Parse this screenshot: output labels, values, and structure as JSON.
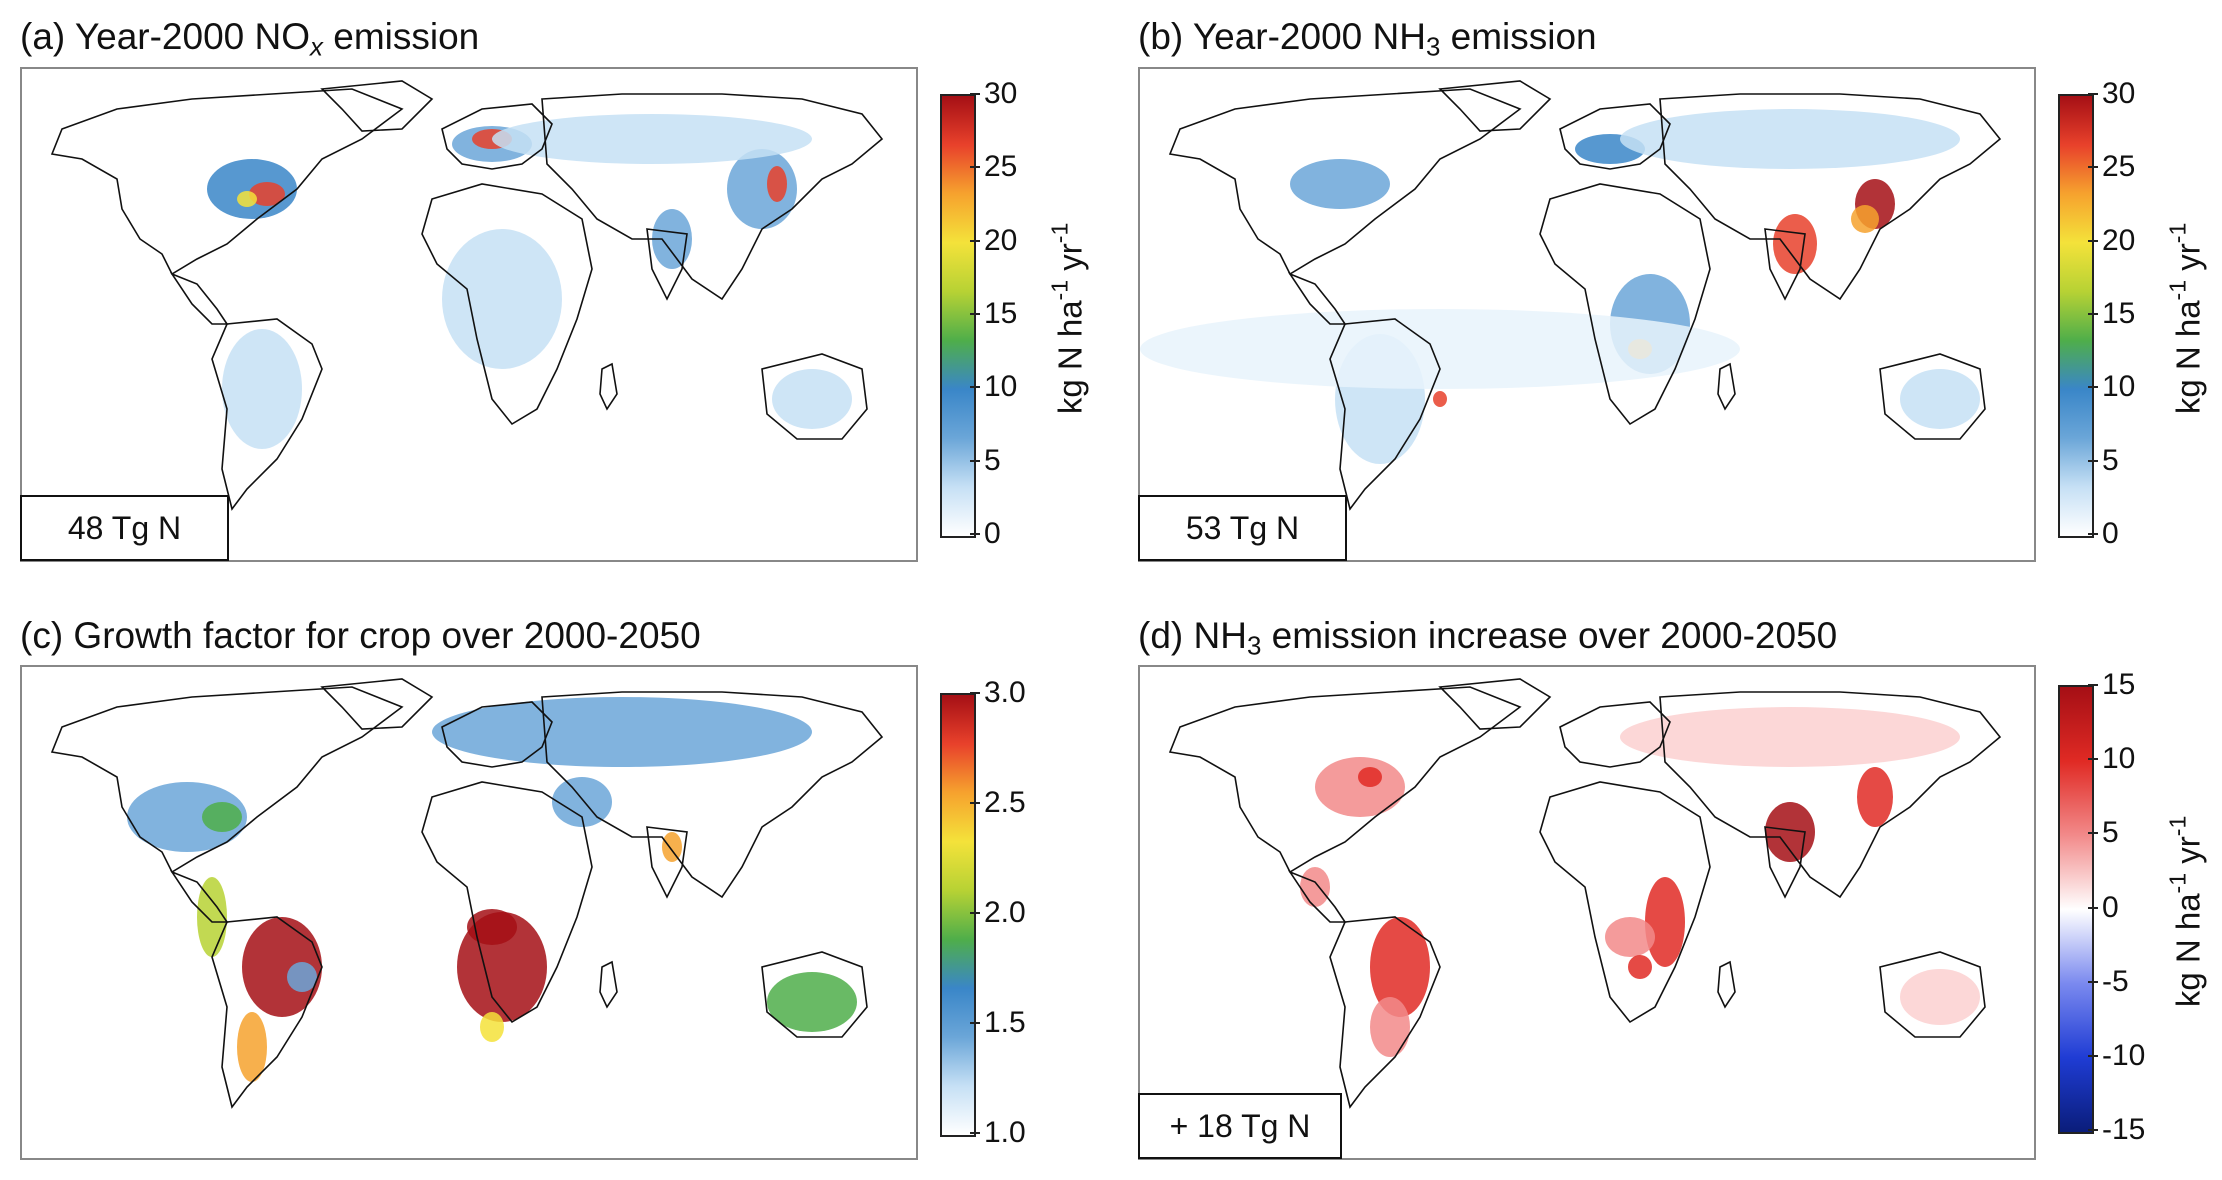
{
  "panels": [
    {
      "id": "a",
      "title_prefix": "(a) Year-2000 NO",
      "title_sub": "x",
      "title_suffix": " emission",
      "total": "48 Tg N",
      "colorbar": {
        "ticks": [
          "30",
          "25",
          "20",
          "15",
          "10",
          "5",
          "0"
        ],
        "range": [
          0,
          30
        ],
        "scheme": "white-blue-green-yellow-red"
      },
      "colorbar_label": {
        "main": "kg N ha",
        "sup1": "-1",
        "mid": " yr",
        "sup2": "-1"
      }
    },
    {
      "id": "b",
      "title_prefix": "(b) Year-2000 NH",
      "title_sub": "3",
      "title_suffix": " emission",
      "total": "53 Tg N",
      "colorbar": {
        "ticks": [
          "30",
          "25",
          "20",
          "15",
          "10",
          "5",
          "0"
        ],
        "range": [
          0,
          30
        ],
        "scheme": "white-blue-green-yellow-red"
      },
      "colorbar_label": {
        "main": "kg N ha",
        "sup1": "-1",
        "mid": " yr",
        "sup2": "-1"
      }
    },
    {
      "id": "c",
      "title_prefix": "(c) Growth factor for crop over 2000-2050",
      "title_sub": "",
      "title_suffix": "",
      "total": "",
      "colorbar": {
        "ticks": [
          "3.0",
          "2.5",
          "2.0",
          "1.5",
          "1.0"
        ],
        "range": [
          1.0,
          3.0
        ],
        "scheme": "white-blue-green-yellow-red"
      },
      "colorbar_label": {
        "main": "",
        "sup1": "",
        "mid": "",
        "sup2": ""
      }
    },
    {
      "id": "d",
      "title_prefix": "(d) NH",
      "title_sub": "3",
      "title_suffix": " emission increase over 2000-2050",
      "total": "+ 18 Tg N",
      "colorbar": {
        "ticks": [
          "15",
          "10",
          "5",
          "0",
          "-5",
          "-10",
          "-15"
        ],
        "range": [
          -15,
          15
        ],
        "scheme": "blue-white-red"
      },
      "colorbar_label": {
        "main": "kg N ha",
        "sup1": "-1",
        "mid": " yr",
        "sup2": "-1"
      }
    }
  ],
  "colors": {
    "seq": [
      "#ffffff",
      "#c6e0f5",
      "#6ba6d8",
      "#3a86c8",
      "#4fae4a",
      "#b7d234",
      "#f4e23a",
      "#f6a22e",
      "#e8412b",
      "#a50f15"
    ],
    "div": [
      "#0a1d7a",
      "#1f3cd4",
      "#7a89ef",
      "#ffffff",
      "#f28a8a",
      "#e02a24",
      "#a50f15"
    ],
    "map_fill": "#ffffff",
    "border": "#111111"
  }
}
